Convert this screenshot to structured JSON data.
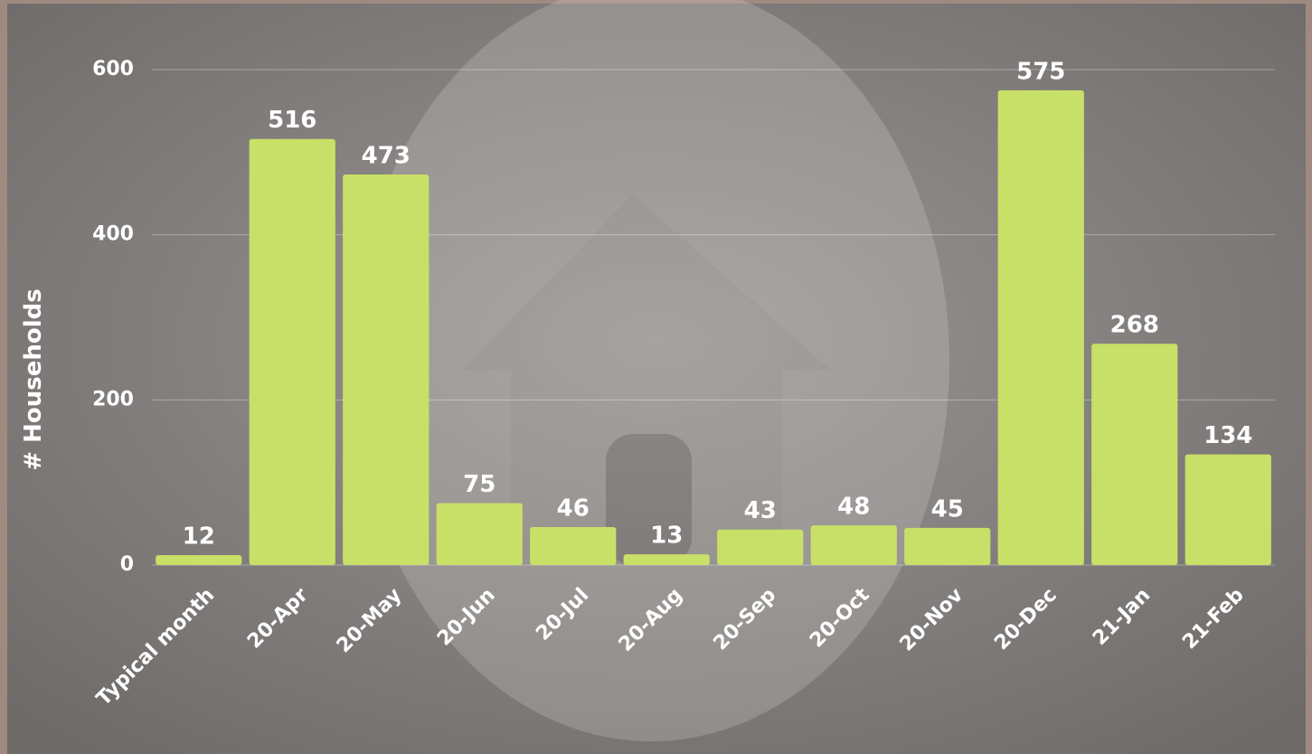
{
  "chart_data": {
    "type": "bar",
    "y_label": "# Households",
    "categories": [
      "Typical month",
      "20-Apr",
      "20-May",
      "20-Jun",
      "20-Jul",
      "20-Aug",
      "20-Sep",
      "20-Oct",
      "20-Nov",
      "20-Dec",
      "21-Jan",
      "21-Feb"
    ],
    "values": [
      12,
      516,
      473,
      75,
      46,
      13,
      43,
      48,
      45,
      575,
      268,
      134
    ],
    "color": "#c8e067",
    "ylim": [
      0,
      600
    ],
    "yticks": [
      0,
      200,
      400,
      600
    ],
    "grid": true
  }
}
